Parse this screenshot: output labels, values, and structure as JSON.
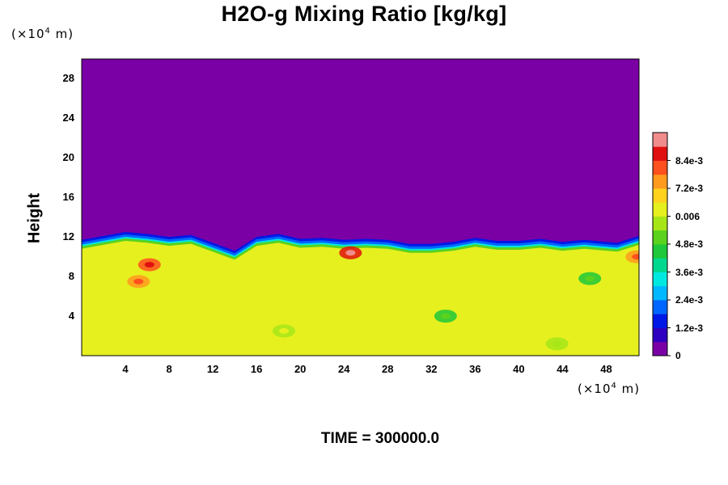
{
  "chart_data": {
    "type": "heatmap",
    "title": "H2O-g Mixing Ratio [kg/kg]",
    "ylabel": "Height",
    "yunit": "(×10",
    "xunit": "(×10",
    "unit_exp": "4",
    "unit_tail": " m)",
    "footer": "TIME = 300000.0",
    "xlim": [
      0,
      51
    ],
    "ylim": [
      0,
      30
    ],
    "xticks": [
      "4",
      "8",
      "12",
      "16",
      "20",
      "24",
      "28",
      "32",
      "36",
      "40",
      "44",
      "48"
    ],
    "yticks": [
      "4",
      "8",
      "12",
      "16",
      "20",
      "24",
      "28"
    ],
    "colorbar": {
      "range": [
        0,
        0.0096
      ],
      "ticks": [
        {
          "value": 0,
          "label": "0"
        },
        {
          "value": 0.0012,
          "label": "1.2e-3"
        },
        {
          "value": 0.0024,
          "label": "2.4e-3"
        },
        {
          "value": 0.0036,
          "label": "3.6e-3"
        },
        {
          "value": 0.0048,
          "label": "4.8e-3"
        },
        {
          "value": 0.006,
          "label": "0.006"
        },
        {
          "value": 0.0072,
          "label": "7.2e-3"
        },
        {
          "value": 0.0084,
          "label": "8.4e-3"
        }
      ],
      "colors": [
        "#7a00a6",
        "#2e00bf",
        "#0018e6",
        "#0066ff",
        "#00b8ff",
        "#00e8e0",
        "#00d890",
        "#1ec83a",
        "#5ad21e",
        "#a6e619",
        "#e6f01e",
        "#ffd21e",
        "#ff9a1e",
        "#ff5020",
        "#e01010",
        "#f08c8c"
      ]
    },
    "background_value": 0.0064,
    "top_value": 0,
    "interface_height_x": [
      0,
      2,
      4,
      6,
      8,
      10,
      12,
      14,
      16,
      18,
      20,
      22,
      24,
      26,
      28,
      30,
      32,
      34,
      36,
      38,
      40,
      42,
      44,
      46,
      48,
      49,
      51
    ],
    "interface_height_y": [
      11.3,
      11.7,
      12.1,
      11.9,
      11.6,
      11.8,
      11.0,
      10.2,
      11.6,
      11.9,
      11.4,
      11.5,
      11.3,
      11.4,
      11.3,
      10.9,
      10.9,
      11.1,
      11.5,
      11.2,
      11.2,
      11.4,
      11.1,
      11.3,
      11.1,
      11.0,
      11.7
    ],
    "features": [
      {
        "x": 5.2,
        "y": 7.5,
        "value": 0.0074
      },
      {
        "x": 6.2,
        "y": 9.2,
        "value": 0.0078
      },
      {
        "x": 24.6,
        "y": 10.4,
        "value": 0.0086
      },
      {
        "x": 46.5,
        "y": 7.8,
        "value": 0.0045
      },
      {
        "x": 33.3,
        "y": 4.0,
        "value": 0.0046
      },
      {
        "x": 18.5,
        "y": 2.5,
        "value": 0.0057
      },
      {
        "x": 43.5,
        "y": 1.2,
        "value": 0.0055
      },
      {
        "x": 50.8,
        "y": 10.0,
        "value": 0.0074
      }
    ]
  }
}
